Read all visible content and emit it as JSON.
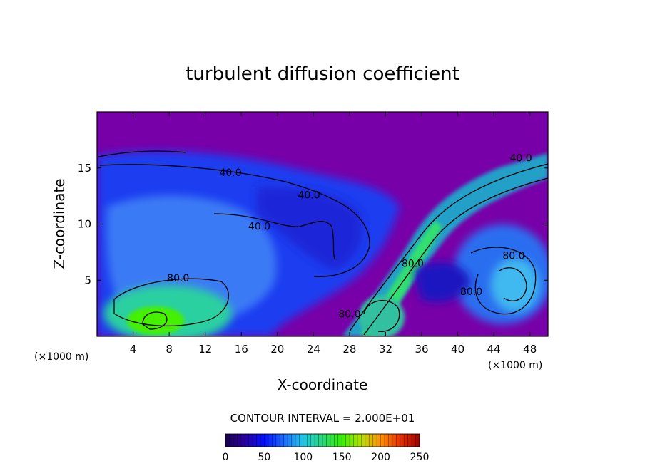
{
  "chart_data": {
    "type": "heatmap",
    "title": "turbulent diffusion coefficient",
    "xlabel": "X-coordinate",
    "ylabel": "Z-coordinate",
    "x_unit": "(×1000 m)",
    "x_unit_right": "(×1000 m)",
    "xlim": [
      0,
      50
    ],
    "ylim": [
      0,
      20
    ],
    "x_ticks": [
      4,
      8,
      12,
      16,
      20,
      24,
      28,
      32,
      36,
      40,
      44,
      48
    ],
    "y_ticks": [
      5,
      10,
      15
    ],
    "contour_interval_text": "CONTOUR INTERVAL = 2.000E+01",
    "contour_labels": [
      {
        "text": "40.0",
        "x": 14.8,
        "z": 14.6
      },
      {
        "text": "40.0",
        "x": 23.5,
        "z": 12.6
      },
      {
        "text": "40.0",
        "x": 18.0,
        "z": 9.8
      },
      {
        "text": "80.0",
        "x": 9.0,
        "z": 5.2
      },
      {
        "text": "80.0",
        "x": 46.2,
        "z": 7.2
      },
      {
        "text": "80.0",
        "x": 41.5,
        "z": 4.0
      },
      {
        "text": "40.0",
        "x": 47.0,
        "z": 15.9
      },
      {
        "text": "80.0",
        "x": 28.0,
        "z": 2.0
      },
      {
        "text": "80.0",
        "x": 35.0,
        "z": 6.5
      }
    ],
    "colorbar": {
      "min": 0,
      "max": 250,
      "ticks": [
        0,
        50,
        100,
        150,
        200,
        250
      ],
      "colors": [
        "#1a004f",
        "#2a00a0",
        "#0010ff",
        "#1e6cff",
        "#20c8e8",
        "#28d878",
        "#38f000",
        "#b8e000",
        "#ff9000",
        "#e83000",
        "#a00000"
      ]
    },
    "field": {
      "background_color": "#7800a8",
      "regions": [
        {
          "desc": "upper quiet layer",
          "value": 0
        },
        {
          "desc": "left mixing cell",
          "value": 40
        },
        {
          "desc": "lower-left core",
          "value": 100
        },
        {
          "desc": "right vortex",
          "value": 70
        },
        {
          "desc": "frontal band",
          "value": 90
        }
      ]
    }
  }
}
